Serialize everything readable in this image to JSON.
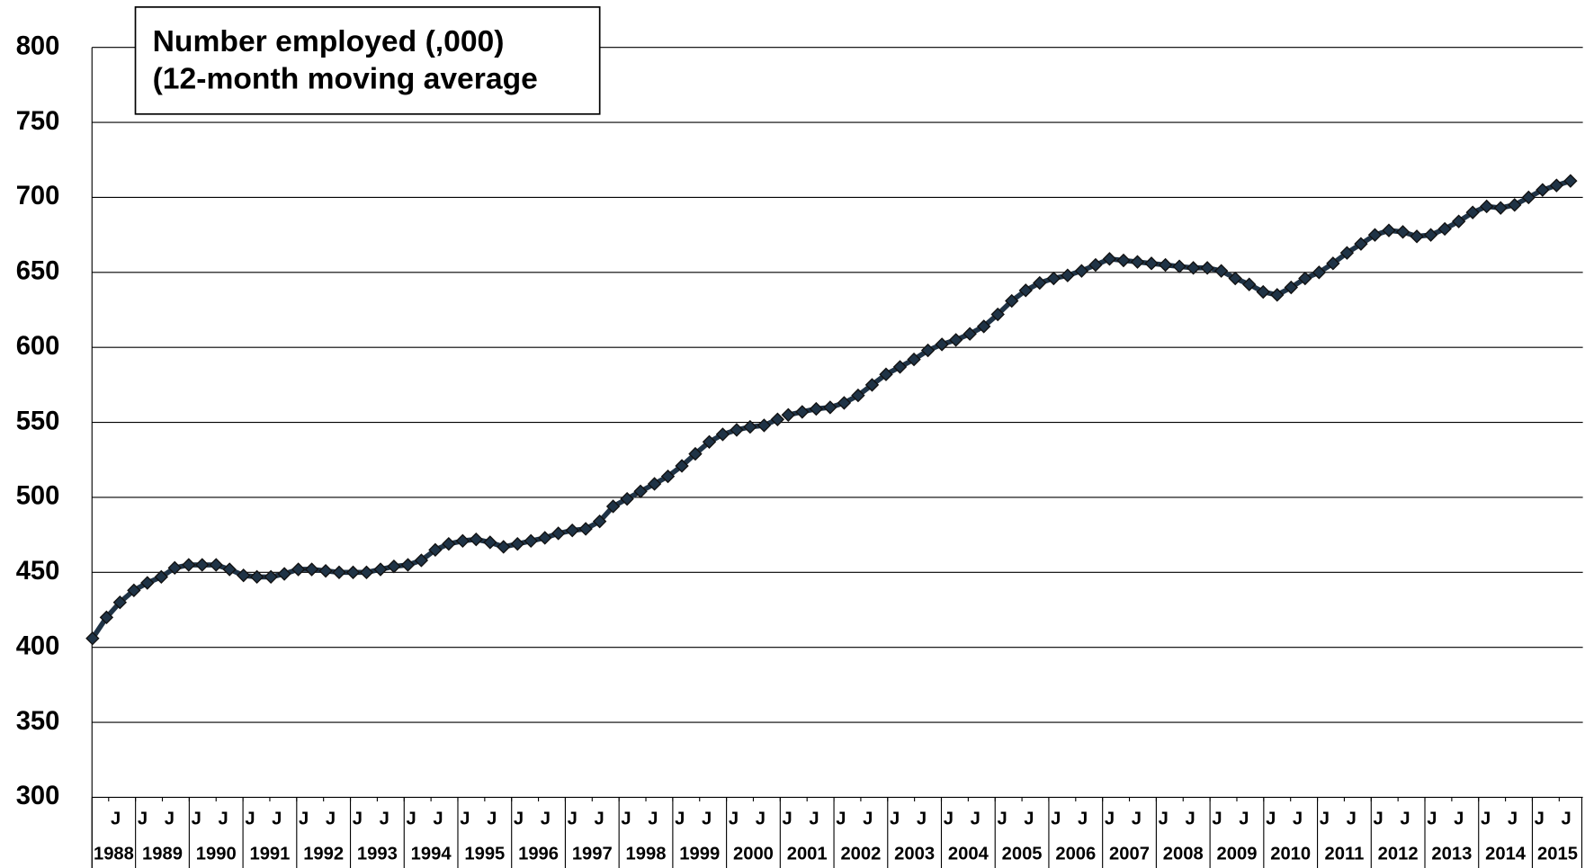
{
  "chart_data": {
    "type": "line",
    "title_lines": [
      "Number employed (,000)",
      "(12-month moving average"
    ],
    "ylim": [
      300,
      800
    ],
    "yticks": [
      300,
      350,
      400,
      450,
      500,
      550,
      600,
      650,
      700,
      750,
      800
    ],
    "grid": true,
    "xlim": [
      1988.19,
      2015.94
    ],
    "xticks": [
      {
        "value": 1988.5,
        "label": "J"
      },
      {
        "value": 1989,
        "label": "J"
      },
      {
        "value": 1989.5,
        "label": "J"
      },
      {
        "value": 1990,
        "label": "J"
      },
      {
        "value": 1990.5,
        "label": "J"
      },
      {
        "value": 1991,
        "label": "J"
      },
      {
        "value": 1991.5,
        "label": "J"
      },
      {
        "value": 1992,
        "label": "J"
      },
      {
        "value": 1992.5,
        "label": "J"
      },
      {
        "value": 1993,
        "label": "J"
      },
      {
        "value": 1993.5,
        "label": "J"
      },
      {
        "value": 1994,
        "label": "J"
      },
      {
        "value": 1994.5,
        "label": "J"
      },
      {
        "value": 1995,
        "label": "J"
      },
      {
        "value": 1995.5,
        "label": "J"
      },
      {
        "value": 1996,
        "label": "J"
      },
      {
        "value": 1996.5,
        "label": "J"
      },
      {
        "value": 1997,
        "label": "J"
      },
      {
        "value": 1997.5,
        "label": "J"
      },
      {
        "value": 1998,
        "label": "J"
      },
      {
        "value": 1998.5,
        "label": "J"
      },
      {
        "value": 1999,
        "label": "J"
      },
      {
        "value": 1999.5,
        "label": "J"
      },
      {
        "value": 2000,
        "label": "J"
      },
      {
        "value": 2000.5,
        "label": "J"
      },
      {
        "value": 2001,
        "label": "J"
      },
      {
        "value": 2001.5,
        "label": "J"
      },
      {
        "value": 2002,
        "label": "J"
      },
      {
        "value": 2002.5,
        "label": "J"
      },
      {
        "value": 2003,
        "label": "J"
      },
      {
        "value": 2003.5,
        "label": "J"
      },
      {
        "value": 2004,
        "label": "J"
      },
      {
        "value": 2004.5,
        "label": "J"
      },
      {
        "value": 2005,
        "label": "J"
      },
      {
        "value": 2005.5,
        "label": "J"
      },
      {
        "value": 2006,
        "label": "J"
      },
      {
        "value": 2006.5,
        "label": "J"
      },
      {
        "value": 2007,
        "label": "J"
      },
      {
        "value": 2007.5,
        "label": "J"
      },
      {
        "value": 2008,
        "label": "J"
      },
      {
        "value": 2008.5,
        "label": "J"
      },
      {
        "value": 2009,
        "label": "J"
      },
      {
        "value": 2009.5,
        "label": "J"
      },
      {
        "value": 2010,
        "label": "J"
      },
      {
        "value": 2010.5,
        "label": "J"
      },
      {
        "value": 2011,
        "label": "J"
      },
      {
        "value": 2011.5,
        "label": "J"
      },
      {
        "value": 2012,
        "label": "J"
      },
      {
        "value": 2012.5,
        "label": "J"
      },
      {
        "value": 2013,
        "label": "J"
      },
      {
        "value": 2013.5,
        "label": "J"
      },
      {
        "value": 2014,
        "label": "J"
      },
      {
        "value": 2014.5,
        "label": "J"
      },
      {
        "value": 2015,
        "label": "J"
      },
      {
        "value": 2015.5,
        "label": "J"
      }
    ],
    "years": [
      1988,
      1989,
      1990,
      1991,
      1992,
      1993,
      1994,
      1995,
      1996,
      1997,
      1998,
      1999,
      2000,
      2001,
      2002,
      2003,
      2004,
      2005,
      2006,
      2007,
      2008,
      2009,
      2010,
      2011,
      2012,
      2013,
      2014,
      2015
    ],
    "x": [
      1988.2,
      1988.46,
      1988.71,
      1988.97,
      1989.22,
      1989.48,
      1989.73,
      1989.99,
      1990.24,
      1990.5,
      1990.75,
      1991.01,
      1991.26,
      1991.52,
      1991.77,
      1992.03,
      1992.28,
      1992.54,
      1992.79,
      1993.05,
      1993.3,
      1993.56,
      1993.81,
      1994.07,
      1994.32,
      1994.58,
      1994.83,
      1995.09,
      1995.34,
      1995.6,
      1995.85,
      1996.11,
      1996.36,
      1996.62,
      1996.87,
      1997.13,
      1997.38,
      1997.64,
      1997.89,
      1998.15,
      1998.4,
      1998.66,
      1998.91,
      1999.17,
      1999.42,
      1999.68,
      1999.93,
      2000.19,
      2000.44,
      2000.7,
      2000.95,
      2001.05,
      2001.15,
      2001.41,
      2001.67,
      2001.93,
      2002.19,
      2002.45,
      2002.71,
      2002.97,
      2003.23,
      2003.49,
      2003.75,
      2004.01,
      2004.27,
      2004.53,
      2004.79,
      2005.05,
      2005.31,
      2005.57,
      2005.83,
      2006.09,
      2006.35,
      2006.61,
      2006.87,
      2007.13,
      2007.39,
      2007.65,
      2007.91,
      2008.17,
      2008.43,
      2008.69,
      2008.95,
      2009.21,
      2009.47,
      2009.73,
      2009.99,
      2010.25,
      2010.51,
      2010.77,
      2011.03,
      2011.29,
      2011.55,
      2011.81,
      2012.07,
      2012.33,
      2012.59,
      2012.85,
      2013.11,
      2013.37,
      2013.63,
      2013.89,
      2014.15,
      2014.41,
      2014.67,
      2014.93,
      2015.19,
      2015.45,
      2015.71
    ],
    "series": [
      {
        "color": "#1f3346",
        "values": [
          406,
          420,
          430,
          438,
          443,
          447,
          453,
          455,
          455,
          455,
          452,
          448,
          447,
          447,
          449,
          452,
          452,
          451,
          450,
          450,
          450,
          452,
          454,
          455,
          458,
          465,
          469,
          471,
          472,
          470,
          467,
          469,
          471,
          473,
          476,
          478,
          479,
          484,
          494,
          499,
          504,
          509,
          514,
          521,
          529,
          537,
          542,
          545,
          547,
          548,
          552,
          null,
          555,
          557,
          559,
          560,
          563,
          568,
          575,
          582,
          587,
          592,
          598,
          602,
          605,
          609,
          614,
          622,
          631,
          638,
          643,
          646,
          648,
          651,
          655,
          659,
          658,
          657,
          656,
          655,
          654,
          653,
          653,
          651,
          646,
          642,
          637,
          635,
          640,
          646,
          650,
          656,
          663,
          669,
          675,
          678,
          677,
          674,
          675,
          679,
          684,
          690,
          694,
          693,
          695,
          700,
          705,
          708,
          711
        ]
      }
    ]
  }
}
